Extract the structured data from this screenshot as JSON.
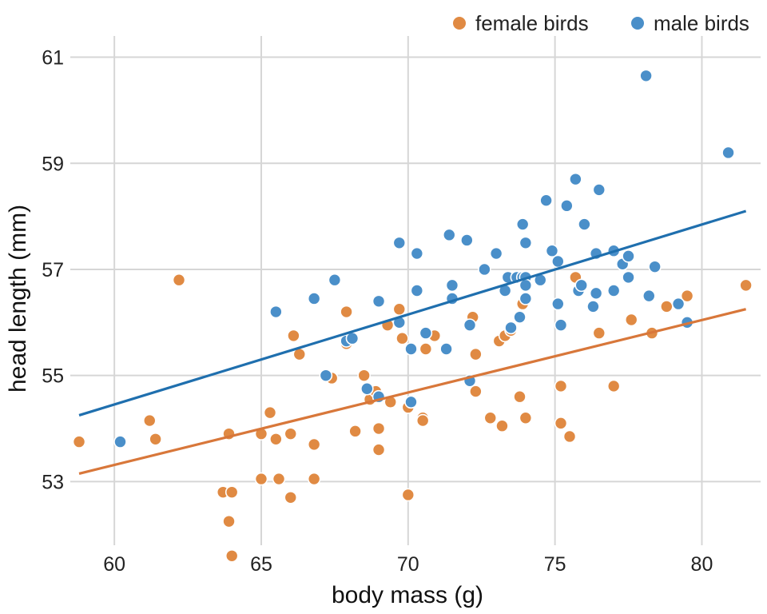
{
  "chart_data": {
    "type": "scatter",
    "title": "",
    "xlabel": "body mass (g)",
    "ylabel": "head length (mm)",
    "xlim": [
      58.5,
      82
    ],
    "ylim": [
      51.8,
      61.4
    ],
    "xticks": [
      60,
      65,
      70,
      75,
      80
    ],
    "yticks": [
      53,
      55,
      57,
      59,
      61
    ],
    "grid": true,
    "legend_position": "top-right",
    "series": [
      {
        "name": "female birds",
        "color": "#e08a43",
        "points": [
          [
            58.8,
            53.75
          ],
          [
            61.2,
            54.15
          ],
          [
            61.4,
            53.8
          ],
          [
            62.2,
            56.8
          ],
          [
            63.7,
            52.8
          ],
          [
            63.9,
            52.25
          ],
          [
            63.9,
            53.9
          ],
          [
            64.0,
            52.8
          ],
          [
            64.0,
            51.6
          ],
          [
            65.0,
            53.05
          ],
          [
            65.0,
            53.9
          ],
          [
            65.3,
            54.3
          ],
          [
            65.5,
            53.8
          ],
          [
            65.6,
            53.05
          ],
          [
            66.0,
            52.7
          ],
          [
            66.0,
            53.9
          ],
          [
            66.1,
            55.75
          ],
          [
            66.3,
            55.4
          ],
          [
            66.8,
            53.05
          ],
          [
            66.8,
            53.7
          ],
          [
            67.4,
            54.95
          ],
          [
            67.9,
            55.6
          ],
          [
            67.9,
            56.2
          ],
          [
            68.2,
            53.95
          ],
          [
            68.5,
            55.0
          ],
          [
            68.7,
            54.55
          ],
          [
            68.9,
            54.7
          ],
          [
            69.0,
            54.0
          ],
          [
            69.0,
            53.6
          ],
          [
            69.3,
            55.95
          ],
          [
            69.4,
            54.5
          ],
          [
            69.7,
            56.25
          ],
          [
            69.8,
            55.7
          ],
          [
            70.0,
            54.4
          ],
          [
            70.0,
            52.75
          ],
          [
            70.5,
            54.2
          ],
          [
            70.5,
            54.15
          ],
          [
            70.6,
            55.5
          ],
          [
            70.9,
            55.75
          ],
          [
            72.2,
            56.1
          ],
          [
            72.3,
            55.4
          ],
          [
            72.3,
            54.7
          ],
          [
            72.8,
            54.2
          ],
          [
            73.1,
            55.65
          ],
          [
            73.3,
            55.75
          ],
          [
            73.5,
            55.85
          ],
          [
            73.2,
            54.05
          ],
          [
            73.8,
            54.6
          ],
          [
            73.9,
            56.35
          ],
          [
            74.0,
            54.2
          ],
          [
            75.2,
            54.8
          ],
          [
            75.2,
            54.1
          ],
          [
            75.5,
            53.85
          ],
          [
            75.7,
            56.85
          ],
          [
            76.5,
            55.8
          ],
          [
            77.0,
            54.8
          ],
          [
            77.6,
            56.05
          ],
          [
            78.3,
            55.8
          ],
          [
            78.8,
            56.3
          ],
          [
            79.5,
            56.5
          ],
          [
            81.5,
            56.7
          ]
        ],
        "fit": [
          [
            58.8,
            53.15
          ],
          [
            81.5,
            56.25
          ]
        ]
      },
      {
        "name": "male birds",
        "color": "#4a8fc9",
        "points": [
          [
            60.2,
            53.75
          ],
          [
            65.5,
            56.2
          ],
          [
            66.8,
            56.45
          ],
          [
            67.2,
            55.0
          ],
          [
            67.5,
            56.8
          ],
          [
            67.9,
            55.65
          ],
          [
            68.1,
            55.7
          ],
          [
            68.6,
            54.75
          ],
          [
            69.0,
            54.6
          ],
          [
            69.0,
            56.4
          ],
          [
            69.7,
            56.0
          ],
          [
            69.7,
            57.5
          ],
          [
            70.1,
            54.5
          ],
          [
            70.1,
            55.5
          ],
          [
            70.3,
            57.3
          ],
          [
            70.3,
            56.6
          ],
          [
            70.6,
            55.8
          ],
          [
            71.3,
            55.5
          ],
          [
            71.4,
            57.65
          ],
          [
            71.5,
            56.45
          ],
          [
            71.5,
            56.7
          ],
          [
            72.0,
            57.55
          ],
          [
            72.1,
            55.95
          ],
          [
            72.1,
            54.9
          ],
          [
            72.6,
            57.0
          ],
          [
            73.0,
            57.3
          ],
          [
            73.3,
            56.6
          ],
          [
            73.4,
            56.85
          ],
          [
            73.5,
            55.9
          ],
          [
            73.7,
            56.85
          ],
          [
            73.8,
            56.1
          ],
          [
            73.9,
            56.85
          ],
          [
            73.9,
            57.85
          ],
          [
            74.0,
            56.85
          ],
          [
            74.0,
            56.45
          ],
          [
            74.0,
            56.7
          ],
          [
            74.0,
            57.5
          ],
          [
            74.5,
            56.8
          ],
          [
            74.7,
            58.3
          ],
          [
            74.9,
            57.35
          ],
          [
            75.1,
            57.15
          ],
          [
            75.1,
            56.35
          ],
          [
            75.2,
            55.95
          ],
          [
            75.4,
            58.2
          ],
          [
            75.7,
            58.7
          ],
          [
            75.8,
            56.6
          ],
          [
            75.9,
            56.7
          ],
          [
            76.0,
            57.85
          ],
          [
            76.3,
            56.3
          ],
          [
            76.4,
            57.3
          ],
          [
            76.4,
            56.55
          ],
          [
            76.5,
            58.5
          ],
          [
            77.0,
            56.6
          ],
          [
            77.0,
            57.35
          ],
          [
            77.3,
            57.1
          ],
          [
            77.5,
            56.85
          ],
          [
            77.5,
            57.25
          ],
          [
            78.1,
            60.65
          ],
          [
            78.2,
            56.5
          ],
          [
            78.4,
            57.05
          ],
          [
            79.2,
            56.35
          ],
          [
            79.5,
            56.0
          ],
          [
            80.9,
            59.2
          ]
        ],
        "fit": [
          [
            58.8,
            54.25
          ],
          [
            81.5,
            58.1
          ]
        ]
      }
    ]
  }
}
